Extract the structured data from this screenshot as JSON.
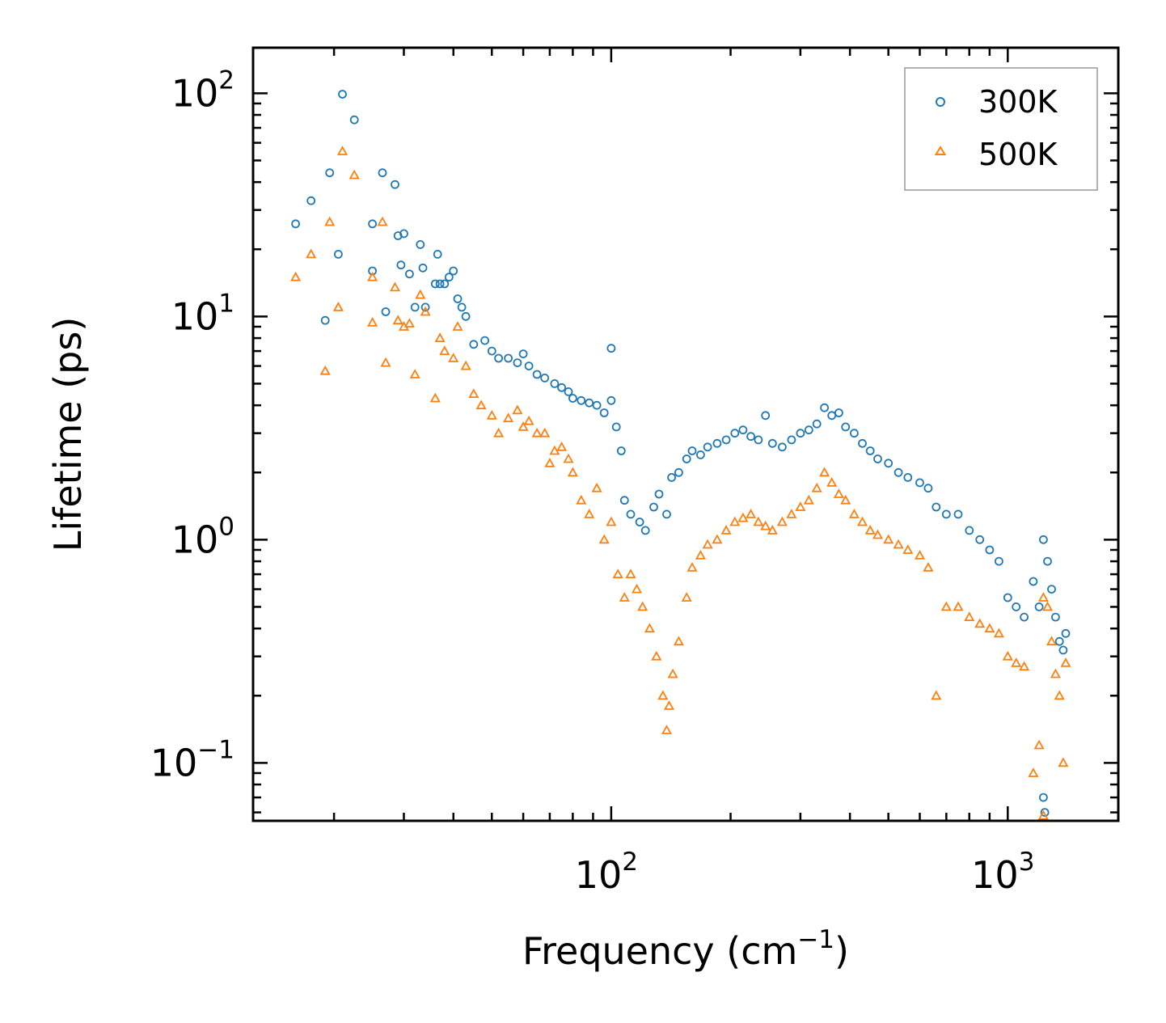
{
  "chart_data": {
    "type": "scatter",
    "title": "",
    "xlabel": "Frequency (cm",
    "xlabel_sup": "−1",
    "xlabel_suffix": ")",
    "ylabel": "Lifetime (ps)",
    "xscale": "log",
    "yscale": "log",
    "xlim": [
      12.5,
      1900
    ],
    "ylim": [
      0.055,
      160
    ],
    "x_ticks": [
      {
        "value": 100,
        "base": "10",
        "exp": "2"
      },
      {
        "value": 1000,
        "base": "10",
        "exp": "3"
      }
    ],
    "y_ticks": [
      {
        "value": 100,
        "base": "10",
        "exp": "2"
      },
      {
        "value": 10,
        "base": "10",
        "exp": "1"
      },
      {
        "value": 1,
        "base": "10",
        "exp": "0"
      },
      {
        "value": 0.1,
        "base": "10",
        "exp": "−1"
      }
    ],
    "legend_position": "top-right",
    "series": [
      {
        "name": "300K",
        "color": "#1f77b4",
        "marker": "circle-open",
        "points": [
          [
            16,
            26
          ],
          [
            17.5,
            33
          ],
          [
            19,
            9.6
          ],
          [
            19.5,
            44
          ],
          [
            20.5,
            19
          ],
          [
            21,
            99
          ],
          [
            22.5,
            76
          ],
          [
            25,
            26
          ],
          [
            25,
            16
          ],
          [
            26.5,
            44
          ],
          [
            27,
            10.5
          ],
          [
            28.5,
            39
          ],
          [
            29,
            23
          ],
          [
            29.5,
            17
          ],
          [
            30,
            23.5
          ],
          [
            31,
            15.5
          ],
          [
            32,
            11
          ],
          [
            33,
            21
          ],
          [
            33.5,
            16.5
          ],
          [
            34,
            11
          ],
          [
            36,
            14
          ],
          [
            36.5,
            19
          ],
          [
            37,
            14
          ],
          [
            38,
            14
          ],
          [
            39,
            15
          ],
          [
            40,
            16
          ],
          [
            41,
            12
          ],
          [
            42,
            11
          ],
          [
            43,
            10
          ],
          [
            45,
            7.5
          ],
          [
            48,
            7.8
          ],
          [
            50,
            7
          ],
          [
            52,
            6.5
          ],
          [
            55,
            6.5
          ],
          [
            58,
            6.2
          ],
          [
            60,
            6.8
          ],
          [
            62,
            6
          ],
          [
            65,
            5.5
          ],
          [
            68,
            5.3
          ],
          [
            72,
            5
          ],
          [
            75,
            4.8
          ],
          [
            78,
            4.6
          ],
          [
            80,
            4.3
          ],
          [
            84,
            4.2
          ],
          [
            88,
            4.1
          ],
          [
            92,
            4
          ],
          [
            96,
            3.7
          ],
          [
            100,
            7.2
          ],
          [
            100,
            4.2
          ],
          [
            103,
            3.2
          ],
          [
            106,
            2.5
          ],
          [
            108,
            1.5
          ],
          [
            112,
            1.3
          ],
          [
            118,
            1.2
          ],
          [
            122,
            1.1
          ],
          [
            128,
            1.4
          ],
          [
            132,
            1.6
          ],
          [
            138,
            1.3
          ],
          [
            142,
            1.9
          ],
          [
            148,
            2
          ],
          [
            155,
            2.3
          ],
          [
            160,
            2.5
          ],
          [
            168,
            2.4
          ],
          [
            175,
            2.6
          ],
          [
            185,
            2.7
          ],
          [
            195,
            2.8
          ],
          [
            205,
            3
          ],
          [
            215,
            3.1
          ],
          [
            225,
            2.9
          ],
          [
            235,
            2.8
          ],
          [
            245,
            3.6
          ],
          [
            255,
            2.7
          ],
          [
            270,
            2.6
          ],
          [
            285,
            2.8
          ],
          [
            300,
            3
          ],
          [
            315,
            3.1
          ],
          [
            330,
            3.3
          ],
          [
            345,
            3.9
          ],
          [
            360,
            3.6
          ],
          [
            375,
            3.7
          ],
          [
            390,
            3.2
          ],
          [
            410,
            3
          ],
          [
            430,
            2.7
          ],
          [
            450,
            2.5
          ],
          [
            470,
            2.3
          ],
          [
            500,
            2.2
          ],
          [
            530,
            2
          ],
          [
            560,
            1.9
          ],
          [
            600,
            1.8
          ],
          [
            630,
            1.7
          ],
          [
            660,
            1.4
          ],
          [
            700,
            1.3
          ],
          [
            750,
            1.3
          ],
          [
            800,
            1.1
          ],
          [
            850,
            1
          ],
          [
            900,
            0.9
          ],
          [
            950,
            0.8
          ],
          [
            1000,
            0.55
          ],
          [
            1050,
            0.5
          ],
          [
            1100,
            0.45
          ],
          [
            1160,
            0.65
          ],
          [
            1200,
            0.5
          ],
          [
            1230,
            1
          ],
          [
            1260,
            0.8
          ],
          [
            1290,
            0.6
          ],
          [
            1320,
            0.45
          ],
          [
            1350,
            0.35
          ],
          [
            1380,
            0.32
          ],
          [
            1400,
            0.38
          ],
          [
            1230,
            0.07
          ],
          [
            1240,
            0.06
          ]
        ]
      },
      {
        "name": "500K",
        "color": "#ff7f0e",
        "marker": "triangle-open",
        "points": [
          [
            16,
            15
          ],
          [
            17.5,
            19
          ],
          [
            19,
            5.7
          ],
          [
            19.5,
            26.5
          ],
          [
            20.5,
            11
          ],
          [
            21,
            55
          ],
          [
            22.5,
            43
          ],
          [
            25,
            9.4
          ],
          [
            25,
            15
          ],
          [
            26.5,
            26.5
          ],
          [
            27,
            6.2
          ],
          [
            28.5,
            13.5
          ],
          [
            29,
            9.6
          ],
          [
            30,
            9
          ],
          [
            31,
            9.3
          ],
          [
            32,
            5.5
          ],
          [
            33,
            12.5
          ],
          [
            34,
            10.5
          ],
          [
            36,
            4.3
          ],
          [
            37,
            8
          ],
          [
            38,
            7
          ],
          [
            40,
            6.5
          ],
          [
            41,
            9
          ],
          [
            43,
            6
          ],
          [
            45,
            4.5
          ],
          [
            47,
            4
          ],
          [
            50,
            3.6
          ],
          [
            52,
            3
          ],
          [
            55,
            3.5
          ],
          [
            58,
            3.8
          ],
          [
            60,
            3.2
          ],
          [
            62,
            3.4
          ],
          [
            65,
            3
          ],
          [
            68,
            3
          ],
          [
            70,
            2.2
          ],
          [
            72,
            2.5
          ],
          [
            75,
            2.6
          ],
          [
            78,
            2.3
          ],
          [
            80,
            2
          ],
          [
            84,
            1.5
          ],
          [
            88,
            1.3
          ],
          [
            92,
            1.7
          ],
          [
            96,
            1
          ],
          [
            100,
            1.2
          ],
          [
            104,
            0.7
          ],
          [
            108,
            0.55
          ],
          [
            112,
            0.7
          ],
          [
            116,
            0.6
          ],
          [
            120,
            0.5
          ],
          [
            125,
            0.4
          ],
          [
            130,
            0.3
          ],
          [
            135,
            0.2
          ],
          [
            138,
            0.14
          ],
          [
            140,
            0.18
          ],
          [
            143,
            0.25
          ],
          [
            148,
            0.35
          ],
          [
            155,
            0.55
          ],
          [
            160,
            0.75
          ],
          [
            168,
            0.85
          ],
          [
            175,
            0.95
          ],
          [
            185,
            1
          ],
          [
            195,
            1.1
          ],
          [
            205,
            1.2
          ],
          [
            215,
            1.25
          ],
          [
            225,
            1.3
          ],
          [
            235,
            1.2
          ],
          [
            245,
            1.15
          ],
          [
            255,
            1.1
          ],
          [
            270,
            1.2
          ],
          [
            285,
            1.3
          ],
          [
            300,
            1.4
          ],
          [
            315,
            1.5
          ],
          [
            330,
            1.7
          ],
          [
            345,
            2
          ],
          [
            360,
            1.8
          ],
          [
            375,
            1.6
          ],
          [
            390,
            1.5
          ],
          [
            410,
            1.3
          ],
          [
            430,
            1.2
          ],
          [
            450,
            1.1
          ],
          [
            470,
            1.05
          ],
          [
            500,
            1
          ],
          [
            530,
            0.95
          ],
          [
            560,
            0.9
          ],
          [
            600,
            0.85
          ],
          [
            630,
            0.75
          ],
          [
            660,
            0.2
          ],
          [
            700,
            0.5
          ],
          [
            750,
            0.5
          ],
          [
            800,
            0.45
          ],
          [
            850,
            0.42
          ],
          [
            900,
            0.4
          ],
          [
            950,
            0.38
          ],
          [
            1000,
            0.3
          ],
          [
            1050,
            0.28
          ],
          [
            1100,
            0.27
          ],
          [
            1160,
            0.09
          ],
          [
            1200,
            0.12
          ],
          [
            1230,
            0.55
          ],
          [
            1260,
            0.5
          ],
          [
            1290,
            0.35
          ],
          [
            1320,
            0.25
          ],
          [
            1350,
            0.2
          ],
          [
            1380,
            0.1
          ],
          [
            1400,
            0.28
          ],
          [
            1230,
            0.058
          ]
        ]
      }
    ]
  }
}
